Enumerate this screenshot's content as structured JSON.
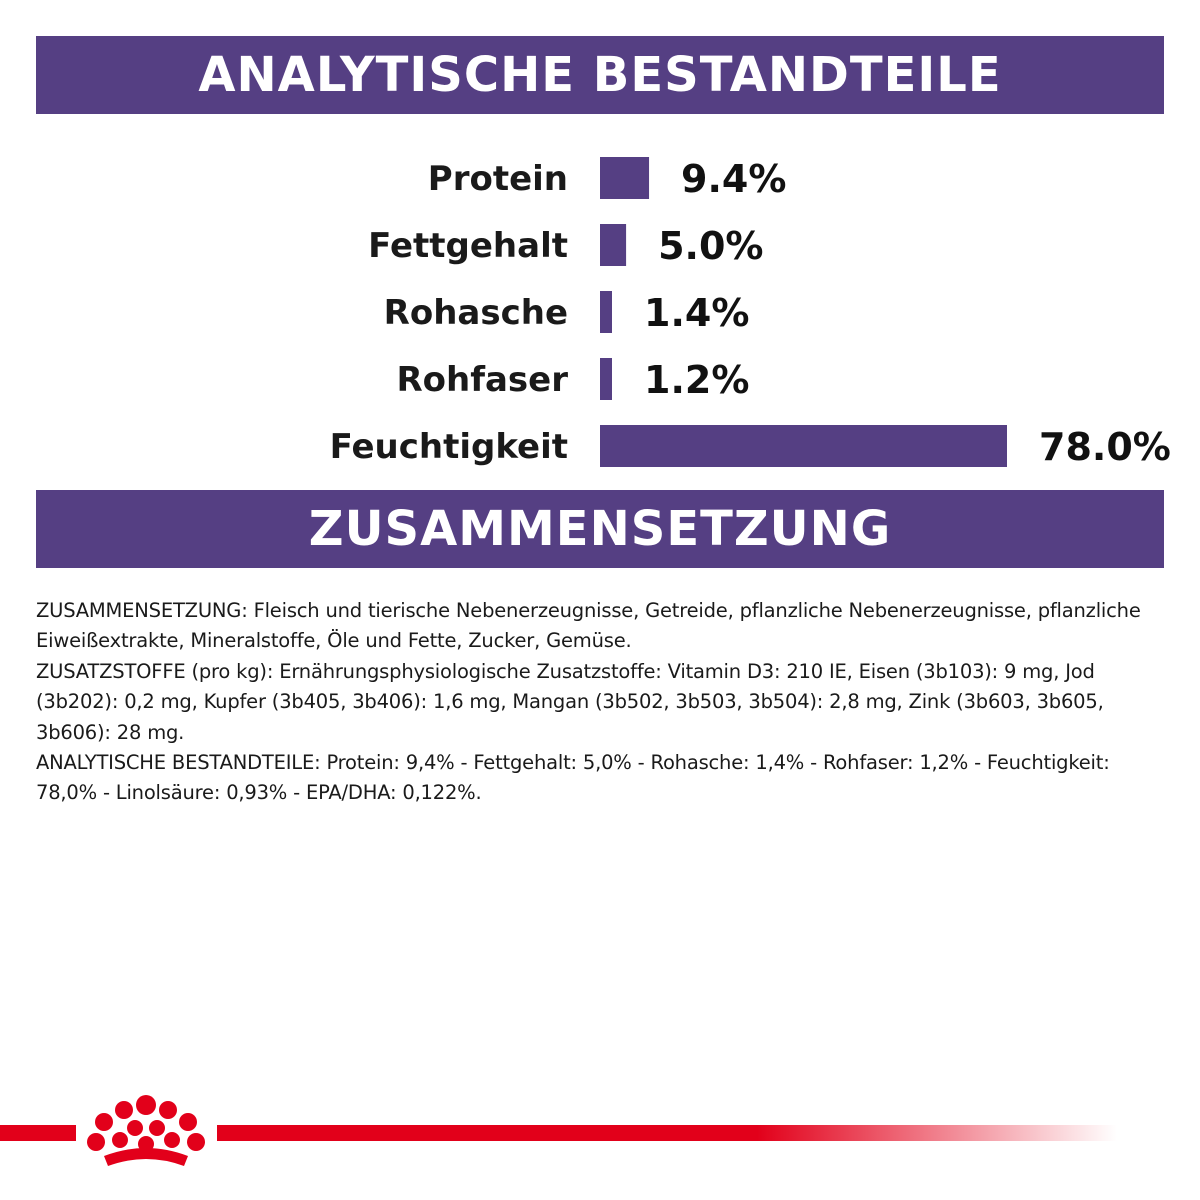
{
  "sections": {
    "analysis_title": "ANALYTISCHE BESTANDTEILE",
    "composition_title": "ZUSAMMENSETZUNG"
  },
  "colors": {
    "bar": "#553f83",
    "banner": "#553f83",
    "brand_red": "#e2001a"
  },
  "chart_data": {
    "type": "bar",
    "orientation": "horizontal",
    "categories": [
      "Protein",
      "Fettgehalt",
      "Rohasche",
      "Rohfaser",
      "Feuchtigkeit"
    ],
    "values": [
      9.4,
      5.0,
      1.4,
      1.2,
      78.0
    ],
    "value_labels": [
      "9.4%",
      "5.0%",
      "1.4%",
      "1.2%",
      "78.0%"
    ],
    "unit": "%",
    "xlim": [
      0,
      78.0
    ],
    "grid": false,
    "legend": "none"
  },
  "composition_text": [
    "ZUSAMMENSETZUNG: Fleisch und tierische Nebenerzeugnisse, Getreide, pflanzliche Nebenerzeugnisse, pflanzliche Eiweißextrakte, Mineralstoffe, Öle und Fette, Zucker, Gemüse.",
    "ZUSATZSTOFFE (pro kg): Ernährungsphysiologische Zusatzstoffe: Vitamin D3: 210 IE, Eisen (3b103): 9 mg, Jod (3b202): 0,2 mg, Kupfer (3b405, 3b406): 1,6 mg, Mangan (3b502, 3b503, 3b504): 2,8 mg, Zink (3b603, 3b605, 3b606): 28 mg.",
    "ANALYTISCHE BESTANDTEILE: Protein: 9,4% - Fettgehalt: 5,0% - Rohasche: 1,4% - Rohfaser: 1,2% - Feuchtigkeit: 78,0% - Linolsäure: 0,93% - EPA/DHA: 0,122%."
  ],
  "footer": {
    "logo_icon": "royal-canin-crown-icon"
  }
}
